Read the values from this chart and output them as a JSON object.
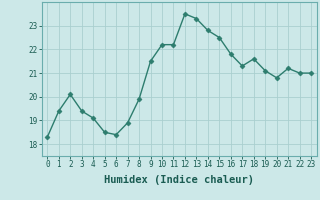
{
  "x": [
    0,
    1,
    2,
    3,
    4,
    5,
    6,
    7,
    8,
    9,
    10,
    11,
    12,
    13,
    14,
    15,
    16,
    17,
    18,
    19,
    20,
    21,
    22,
    23
  ],
  "y": [
    18.3,
    19.4,
    20.1,
    19.4,
    19.1,
    18.5,
    18.4,
    18.9,
    19.9,
    21.5,
    22.2,
    22.2,
    23.5,
    23.3,
    22.8,
    22.5,
    21.8,
    21.3,
    21.6,
    21.1,
    20.8,
    21.2,
    21.0,
    21.0
  ],
  "line_color": "#2d7d6e",
  "marker": "D",
  "marker_size": 2.5,
  "bg_color": "#cce8e8",
  "grid_color": "#aacfcf",
  "xlabel": "Humidex (Indice chaleur)",
  "ylim": [
    17.5,
    24.0
  ],
  "xlim": [
    -0.5,
    23.5
  ],
  "yticks": [
    18,
    19,
    20,
    21,
    22,
    23
  ],
  "xticks": [
    0,
    1,
    2,
    3,
    4,
    5,
    6,
    7,
    8,
    9,
    10,
    11,
    12,
    13,
    14,
    15,
    16,
    17,
    18,
    19,
    20,
    21,
    22,
    23
  ],
  "tick_fontsize": 5.5,
  "xlabel_fontsize": 7.5,
  "line_width": 1.0,
  "tick_color": "#1a5c52",
  "label_color": "#1a5c52"
}
